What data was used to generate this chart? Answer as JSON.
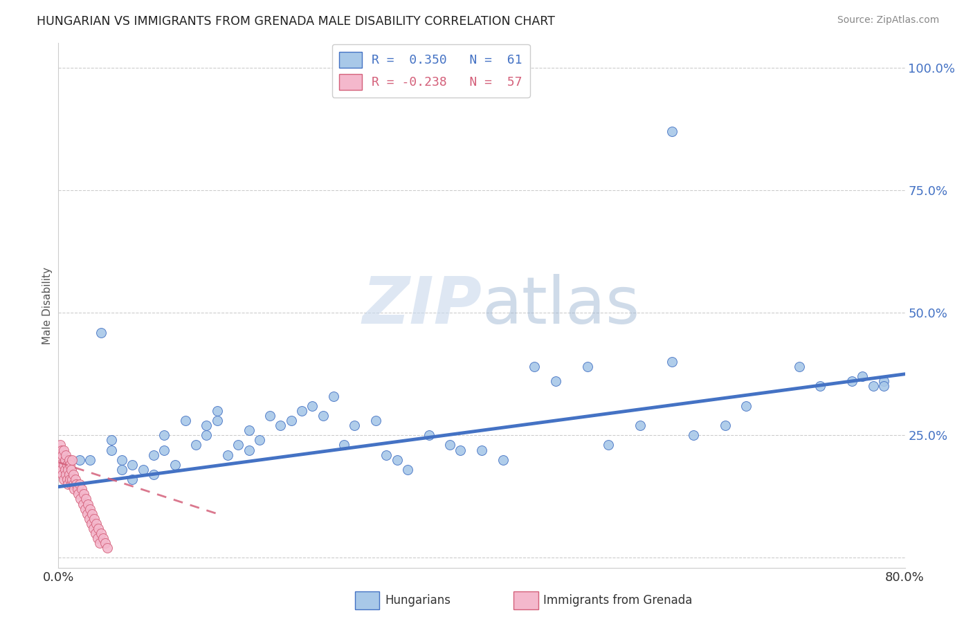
{
  "title": "HUNGARIAN VS IMMIGRANTS FROM GRENADA MALE DISABILITY CORRELATION CHART",
  "source": "Source: ZipAtlas.com",
  "ylabel": "Male Disability",
  "xlim": [
    0.0,
    0.8
  ],
  "ylim": [
    -0.02,
    1.05
  ],
  "blue_color": "#a8c8e8",
  "blue_line_color": "#4472c4",
  "blue_edge_color": "#4472c4",
  "pink_color": "#f4b8cc",
  "pink_line_color": "#d4607a",
  "pink_edge_color": "#d4607a",
  "watermark_color": "#dce8f4",
  "bg_color": "#ffffff",
  "grid_color": "#cccccc",
  "blue_scatter_x": [
    0.02,
    0.03,
    0.04,
    0.05,
    0.05,
    0.06,
    0.06,
    0.07,
    0.07,
    0.08,
    0.09,
    0.09,
    0.1,
    0.1,
    0.11,
    0.12,
    0.13,
    0.14,
    0.14,
    0.15,
    0.15,
    0.16,
    0.17,
    0.18,
    0.18,
    0.19,
    0.2,
    0.21,
    0.22,
    0.23,
    0.24,
    0.25,
    0.26,
    0.27,
    0.28,
    0.3,
    0.31,
    0.32,
    0.33,
    0.35,
    0.37,
    0.38,
    0.4,
    0.42,
    0.45,
    0.47,
    0.5,
    0.52,
    0.55,
    0.58,
    0.58,
    0.6,
    0.63,
    0.65,
    0.7,
    0.72,
    0.75,
    0.76,
    0.77,
    0.78,
    0.78
  ],
  "blue_scatter_y": [
    0.2,
    0.2,
    0.46,
    0.22,
    0.24,
    0.18,
    0.2,
    0.16,
    0.19,
    0.18,
    0.17,
    0.21,
    0.22,
    0.25,
    0.19,
    0.28,
    0.23,
    0.25,
    0.27,
    0.3,
    0.28,
    0.21,
    0.23,
    0.26,
    0.22,
    0.24,
    0.29,
    0.27,
    0.28,
    0.3,
    0.31,
    0.29,
    0.33,
    0.23,
    0.27,
    0.28,
    0.21,
    0.2,
    0.18,
    0.25,
    0.23,
    0.22,
    0.22,
    0.2,
    0.39,
    0.36,
    0.39,
    0.23,
    0.27,
    0.87,
    0.4,
    0.25,
    0.27,
    0.31,
    0.39,
    0.35,
    0.36,
    0.37,
    0.35,
    0.36,
    0.35
  ],
  "pink_scatter_x": [
    0.001,
    0.002,
    0.002,
    0.003,
    0.003,
    0.004,
    0.004,
    0.005,
    0.005,
    0.005,
    0.006,
    0.006,
    0.007,
    0.007,
    0.008,
    0.008,
    0.009,
    0.009,
    0.01,
    0.01,
    0.011,
    0.011,
    0.012,
    0.012,
    0.013,
    0.013,
    0.014,
    0.014,
    0.015,
    0.016,
    0.017,
    0.018,
    0.019,
    0.02,
    0.021,
    0.022,
    0.023,
    0.024,
    0.025,
    0.026,
    0.027,
    0.028,
    0.029,
    0.03,
    0.031,
    0.032,
    0.033,
    0.034,
    0.035,
    0.036,
    0.037,
    0.038,
    0.039,
    0.04,
    0.042,
    0.044,
    0.046
  ],
  "pink_scatter_y": [
    0.2,
    0.19,
    0.23,
    0.18,
    0.22,
    0.17,
    0.21,
    0.19,
    0.16,
    0.22,
    0.18,
    0.2,
    0.17,
    0.21,
    0.16,
    0.19,
    0.18,
    0.15,
    0.17,
    0.2,
    0.16,
    0.19,
    0.15,
    0.18,
    0.16,
    0.2,
    0.15,
    0.17,
    0.14,
    0.16,
    0.15,
    0.14,
    0.13,
    0.15,
    0.12,
    0.14,
    0.11,
    0.13,
    0.1,
    0.12,
    0.09,
    0.11,
    0.08,
    0.1,
    0.07,
    0.09,
    0.06,
    0.08,
    0.05,
    0.07,
    0.04,
    0.06,
    0.03,
    0.05,
    0.04,
    0.03,
    0.02
  ],
  "blue_trendline_x": [
    0.0,
    0.8
  ],
  "blue_trendline_y": [
    0.145,
    0.375
  ],
  "pink_trendline_x": [
    0.0,
    0.15
  ],
  "pink_trendline_y": [
    0.195,
    0.09
  ]
}
